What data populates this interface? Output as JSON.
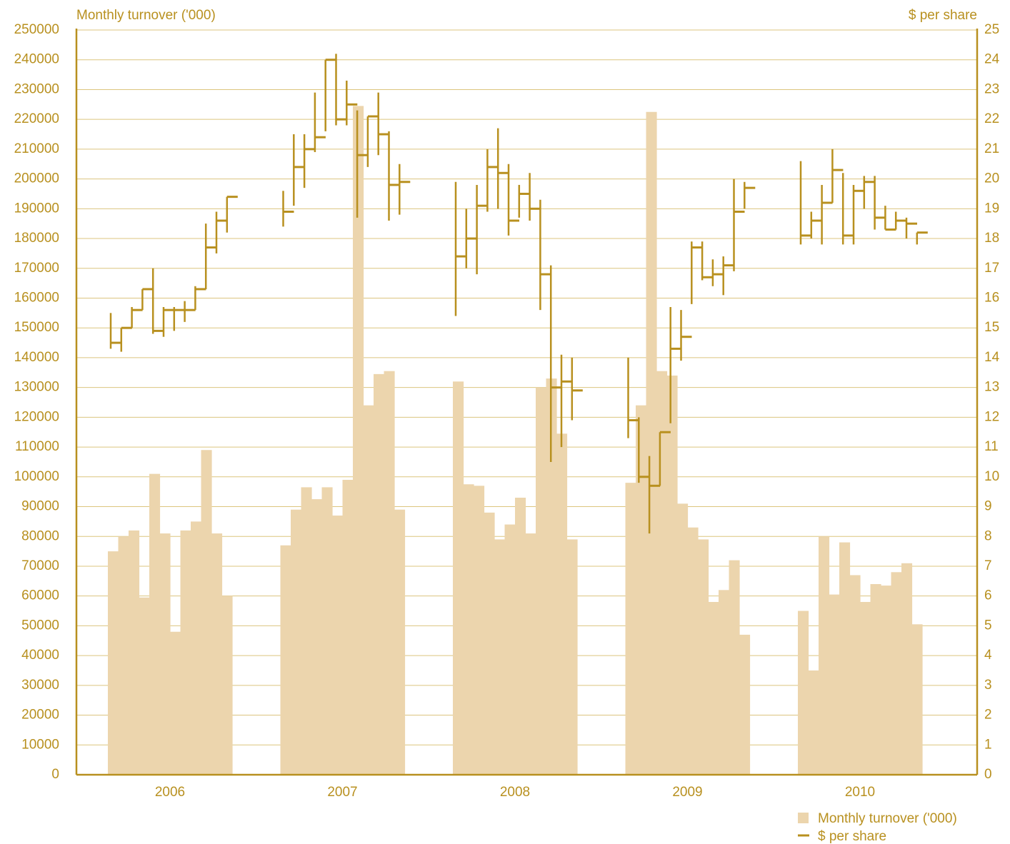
{
  "chart_data": {
    "type": "bar-ohlc",
    "ylabel": "Monthly turnover ('000)",
    "y2label": "$ per share",
    "categories": [
      "2006",
      "2007",
      "2008",
      "2009",
      "2010"
    ],
    "ylim": [
      0,
      250000
    ],
    "yticks": [
      0,
      10000,
      20000,
      30000,
      40000,
      50000,
      60000,
      70000,
      80000,
      90000,
      100000,
      110000,
      120000,
      130000,
      140000,
      150000,
      160000,
      170000,
      180000,
      190000,
      200000,
      210000,
      220000,
      230000,
      240000,
      250000
    ],
    "y2lim": [
      0,
      25
    ],
    "y2ticks": [
      0,
      1,
      2,
      3,
      4,
      5,
      6,
      7,
      8,
      9,
      10,
      11,
      12,
      13,
      14,
      15,
      16,
      17,
      18,
      19,
      20,
      21,
      22,
      23,
      24,
      25
    ],
    "grid": true,
    "legend": "bottom-right",
    "series": [
      {
        "name": "Monthly turnover ('000)",
        "color": "#ecd5ad",
        "values": [
          [
            75000,
            80000,
            82000,
            59500,
            101000,
            81000,
            48000,
            82000,
            85000,
            109000,
            81000,
            60000
          ],
          [
            77000,
            89000,
            96500,
            92500,
            96500,
            87000,
            99000,
            224500,
            124000,
            134500,
            135500,
            89000
          ],
          [
            132000,
            97500,
            97000,
            88000,
            79000,
            84000,
            93000,
            81000,
            130000,
            133000,
            114500,
            79000
          ],
          [
            98000,
            124000,
            222500,
            135500,
            134000,
            91000,
            83000,
            79000,
            58000,
            62000,
            72000,
            47000
          ],
          [
            55000,
            35000,
            80000,
            60500,
            78000,
            67000,
            58000,
            64000,
            63500,
            68000,
            71000,
            50500
          ]
        ]
      },
      {
        "name": "$ per share",
        "color": "#b8901f",
        "axis": "y2",
        "high": [
          [
            15.5,
            15.0,
            15.7,
            16.3,
            17.0,
            15.7,
            15.7,
            15.9,
            16.4,
            18.5,
            18.9,
            19.4
          ],
          [
            19.6,
            21.5,
            21.5,
            22.9,
            24.0,
            24.2,
            23.3,
            22.3,
            22.1,
            22.9,
            21.6,
            20.5
          ],
          [
            19.9,
            19.0,
            19.8,
            21.0,
            21.7,
            20.5,
            19.8,
            20.2,
            19.3,
            17.1,
            14.1,
            14.0
          ],
          [
            14.0,
            12.0,
            10.7,
            11.5,
            15.7,
            15.6,
            17.9,
            17.9,
            17.3,
            17.4,
            20.0,
            19.9
          ],
          [
            20.6,
            18.9,
            19.8,
            21.0,
            20.2,
            19.8,
            20.1,
            20.1,
            19.1,
            18.9,
            18.7,
            18.2
          ]
        ],
        "low": [
          [
            14.3,
            14.2,
            15.0,
            15.6,
            14.8,
            14.7,
            14.9,
            15.2,
            15.6,
            16.3,
            17.5,
            18.2
          ],
          [
            18.4,
            19.1,
            19.7,
            20.9,
            21.6,
            21.8,
            21.8,
            18.7,
            20.4,
            20.8,
            18.6,
            18.8
          ],
          [
            15.4,
            17.0,
            16.8,
            18.9,
            19.0,
            18.1,
            18.7,
            18.6,
            15.6,
            10.5,
            11.0,
            11.9
          ],
          [
            11.3,
            9.8,
            8.1,
            9.7,
            11.8,
            13.9,
            15.8,
            16.6,
            16.4,
            16.1,
            16.9,
            19.0
          ],
          [
            17.8,
            18.0,
            17.8,
            19.2,
            17.8,
            17.8,
            19.0,
            18.3,
            18.3,
            18.3,
            18.0,
            17.8
          ]
        ],
        "close": [
          [
            14.5,
            15.0,
            15.6,
            16.3,
            14.9,
            15.6,
            15.6,
            15.6,
            16.3,
            17.7,
            18.6,
            19.4
          ],
          [
            18.9,
            20.4,
            21.0,
            21.4,
            24.0,
            22.0,
            22.5,
            20.8,
            22.1,
            21.5,
            19.8,
            19.9
          ],
          [
            17.4,
            18.0,
            19.1,
            20.4,
            20.2,
            18.6,
            19.5,
            19.0,
            16.8,
            13.0,
            13.2,
            12.9
          ],
          [
            11.9,
            10.0,
            9.7,
            11.5,
            14.3,
            14.7,
            17.7,
            16.7,
            16.8,
            17.1,
            18.9,
            19.7
          ],
          [
            18.1,
            18.6,
            19.2,
            20.3,
            18.1,
            19.6,
            19.9,
            18.7,
            18.3,
            18.6,
            18.5,
            18.2
          ]
        ]
      }
    ]
  }
}
